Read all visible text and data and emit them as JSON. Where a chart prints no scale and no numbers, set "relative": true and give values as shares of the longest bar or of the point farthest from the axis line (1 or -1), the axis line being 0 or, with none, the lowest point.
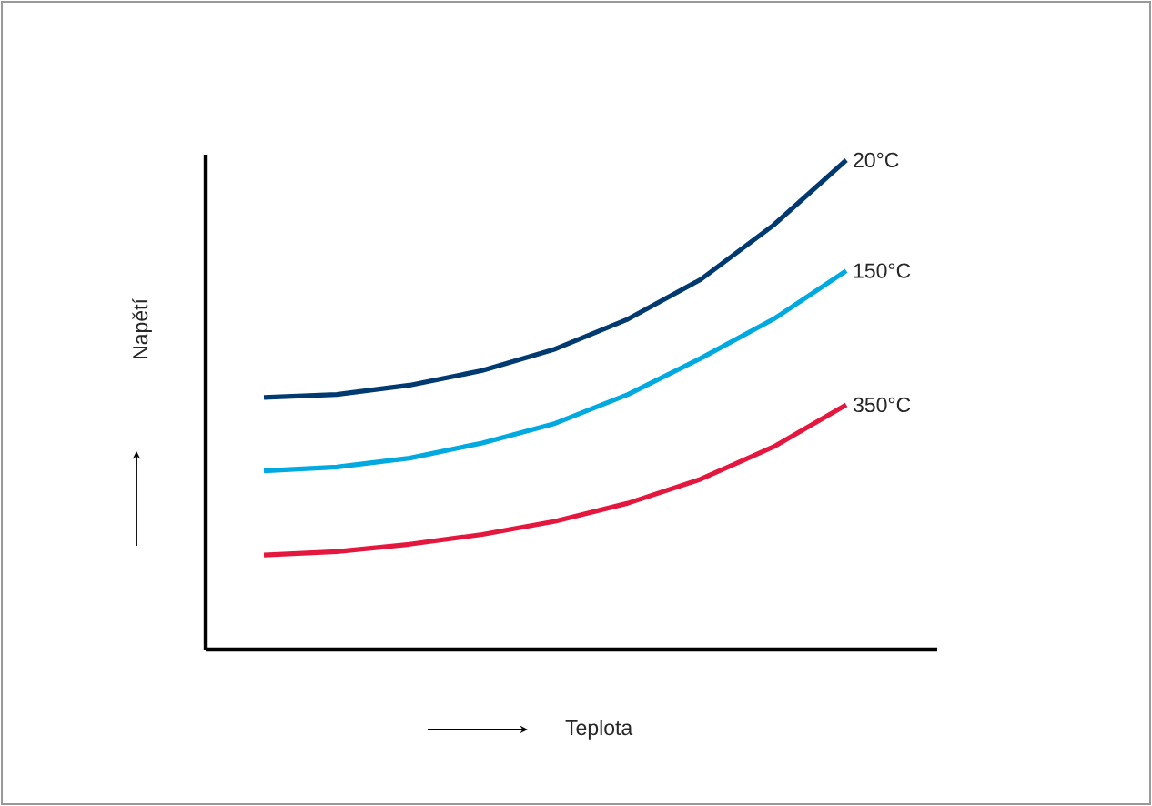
{
  "chart_data": {
    "type": "line",
    "relative": true,
    "xlabel": "Teplota",
    "ylabel": "Napětí",
    "categories": [
      null,
      null,
      null,
      null,
      null,
      null,
      null,
      null,
      null
    ],
    "series": [
      {
        "name": "20°C",
        "color": "#003a70",
        "values": [
          0.515,
          0.521,
          0.54,
          0.57,
          0.614,
          0.675,
          0.756,
          0.867,
          1
        ]
      },
      {
        "name": "150°C",
        "color": "#00a9e0",
        "values": [
          0.365,
          0.373,
          0.391,
          0.422,
          0.462,
          0.521,
          0.595,
          0.675,
          0.774
        ]
      },
      {
        "name": "350°C",
        "color": "#e4173e",
        "values": [
          0.193,
          0.2,
          0.215,
          0.235,
          0.262,
          0.299,
          0.348,
          0.414,
          0.5
        ]
      }
    ],
    "marker": "none",
    "line_style": "solid"
  }
}
